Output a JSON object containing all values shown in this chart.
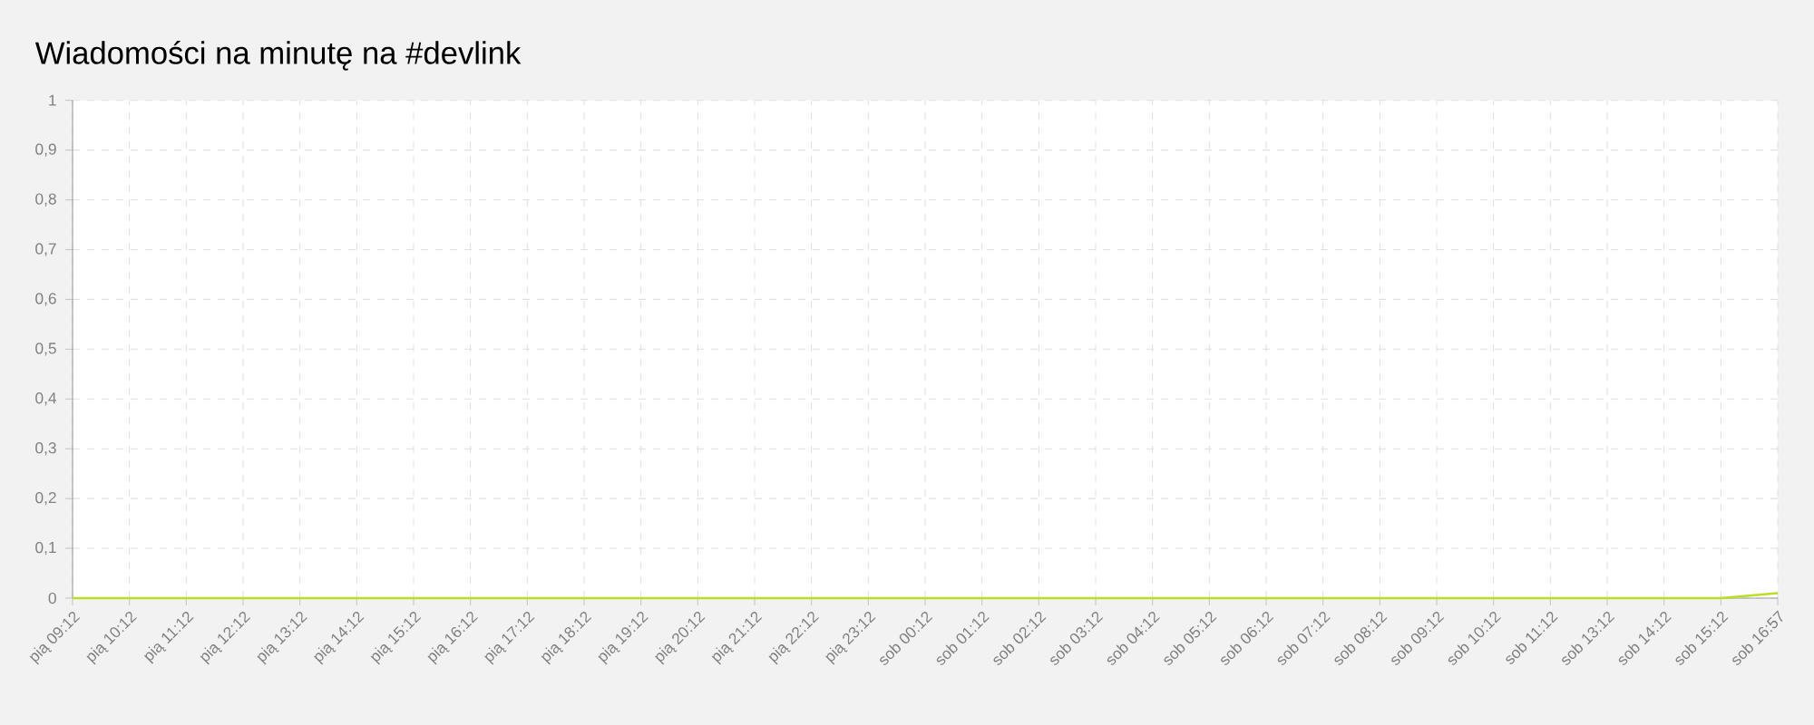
{
  "chart_data": {
    "type": "line",
    "title": "Wiadomości na minutę na #devlink",
    "categories": [
      "pią 09:12",
      "pią 10:12",
      "pią 11:12",
      "pią 12:12",
      "pią 13:12",
      "pią 14:12",
      "pią 15:12",
      "pią 16:12",
      "pią 17:12",
      "pią 18:12",
      "pią 19:12",
      "pią 20:12",
      "pią 21:12",
      "pią 22:12",
      "pią 23:12",
      "sob 00:12",
      "sob 01:12",
      "sob 02:12",
      "sob 03:12",
      "sob 04:12",
      "sob 05:12",
      "sob 06:12",
      "sob 07:12",
      "sob 08:12",
      "sob 09:12",
      "sob 10:12",
      "sob 11:12",
      "sob 13:12",
      "sob 14:12",
      "sob 15:12",
      "sob 16:57"
    ],
    "values": [
      0,
      0,
      0,
      0,
      0,
      0,
      0,
      0,
      0,
      0,
      0,
      0,
      0,
      0,
      0,
      0,
      0,
      0,
      0,
      0,
      0,
      0,
      0,
      0,
      0,
      0,
      0,
      0,
      0,
      0,
      0.01
    ],
    "color": "#bbdd22",
    "ylim": [
      0,
      1
    ],
    "yticks": [
      0,
      {
        "value": 0.1,
        "label": "0,1"
      },
      {
        "value": 0.2,
        "label": "0,2"
      },
      {
        "value": 0.3,
        "label": "0,3"
      },
      {
        "value": 0.4,
        "label": "0,4"
      },
      {
        "value": 0.5,
        "label": "0,5"
      },
      {
        "value": 0.6,
        "label": "0,6"
      },
      {
        "value": 0.7,
        "label": "0,7"
      },
      {
        "value": 0.8,
        "label": "0,8"
      },
      {
        "value": 0.9,
        "label": "0,9"
      },
      1
    ],
    "grid": true
  }
}
